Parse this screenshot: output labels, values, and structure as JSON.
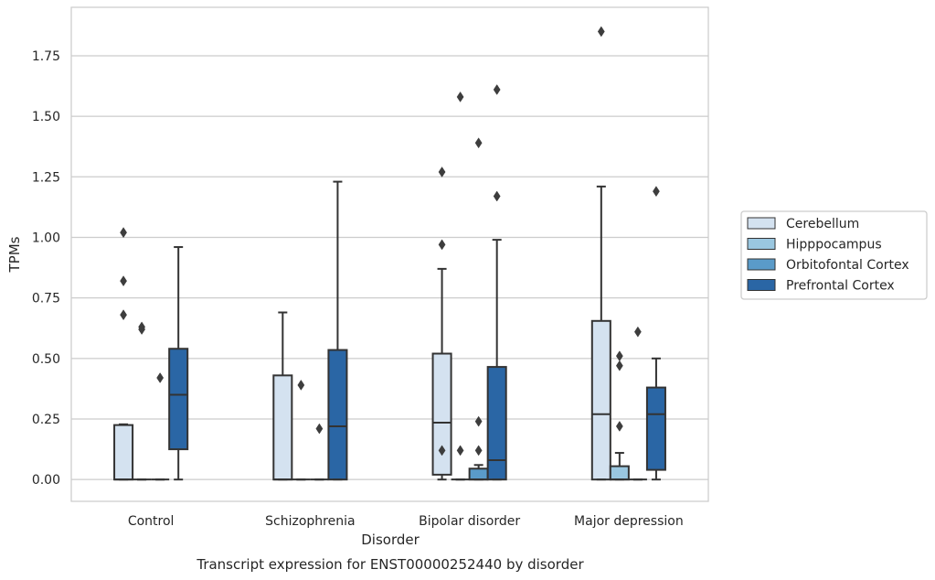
{
  "chart_data": {
    "type": "boxplot",
    "title": "Transcript expression for ENST00000252440 by disorder",
    "xlabel": "Disorder",
    "ylabel": "TPMs",
    "ylim": [
      -0.09,
      1.95
    ],
    "yticks": [
      "0.00",
      "0.25",
      "0.50",
      "0.75",
      "1.00",
      "1.25",
      "1.50",
      "1.75"
    ],
    "grid": "horizontal",
    "legend_position": "right",
    "categories": [
      "Control",
      "Schizophrenia",
      "Bipolar disorder",
      "Major depression"
    ],
    "series": [
      {
        "name": "Cerebellum",
        "color": "#d4e2f0",
        "boxes": [
          {
            "min": 0.0,
            "q1": 0.0,
            "median": 0.0,
            "q3": 0.225,
            "max": 0.228,
            "outliers": [
              1.02,
              0.82,
              0.68
            ]
          },
          {
            "min": 0.0,
            "q1": 0.0,
            "median": 0.0,
            "q3": 0.43,
            "max": 0.69,
            "outliers": []
          },
          {
            "min": 0.0,
            "q1": 0.02,
            "median": 0.235,
            "q3": 0.52,
            "max": 0.87,
            "outliers": [
              1.27,
              0.97,
              0.12
            ]
          },
          {
            "min": 0.0,
            "q1": 0.0,
            "median": 0.27,
            "q3": 0.655,
            "max": 1.21,
            "outliers": [
              1.85
            ]
          }
        ]
      },
      {
        "name": "Hipppocampus",
        "color": "#9ac7e0",
        "boxes": [
          {
            "min": 0.0,
            "q1": 0.0,
            "median": 0.0,
            "q3": 0.0,
            "max": 0.0,
            "outliers": [
              0.63,
              0.62
            ]
          },
          {
            "min": 0.0,
            "q1": 0.0,
            "median": 0.0,
            "q3": 0.0,
            "max": 0.0,
            "outliers": [
              0.39
            ]
          },
          {
            "min": 0.0,
            "q1": 0.0,
            "median": 0.0,
            "q3": 0.0,
            "max": 0.0,
            "outliers": [
              1.58,
              0.12
            ]
          },
          {
            "min": 0.0,
            "q1": 0.0,
            "median": 0.0,
            "q3": 0.055,
            "max": 0.11,
            "outliers": [
              0.51,
              0.47,
              0.22
            ]
          }
        ]
      },
      {
        "name": "Orbitofontal Cortex",
        "color": "#5a9bc9",
        "boxes": [
          {
            "min": 0.0,
            "q1": 0.0,
            "median": 0.0,
            "q3": 0.0,
            "max": 0.0,
            "outliers": [
              0.42
            ]
          },
          {
            "min": 0.0,
            "q1": 0.0,
            "median": 0.0,
            "q3": 0.0,
            "max": 0.0,
            "outliers": [
              0.21
            ]
          },
          {
            "min": 0.0,
            "q1": 0.0,
            "median": 0.0,
            "q3": 0.045,
            "max": 0.06,
            "outliers": [
              1.39,
              0.24,
              0.12
            ]
          },
          {
            "min": 0.0,
            "q1": 0.0,
            "median": 0.0,
            "q3": 0.0,
            "max": 0.0,
            "outliers": [
              0.61
            ]
          }
        ]
      },
      {
        "name": "Prefrontal Cortex",
        "color": "#2a66a5",
        "boxes": [
          {
            "min": 0.0,
            "q1": 0.125,
            "median": 0.35,
            "q3": 0.54,
            "max": 0.96,
            "outliers": []
          },
          {
            "min": 0.0,
            "q1": 0.0,
            "median": 0.22,
            "q3": 0.535,
            "max": 1.23,
            "outliers": []
          },
          {
            "min": 0.0,
            "q1": 0.0,
            "median": 0.08,
            "q3": 0.465,
            "max": 0.99,
            "outliers": [
              1.61,
              1.17
            ]
          },
          {
            "min": 0.0,
            "q1": 0.04,
            "median": 0.27,
            "q3": 0.38,
            "max": 0.5,
            "outliers": [
              1.19
            ]
          }
        ]
      }
    ]
  }
}
